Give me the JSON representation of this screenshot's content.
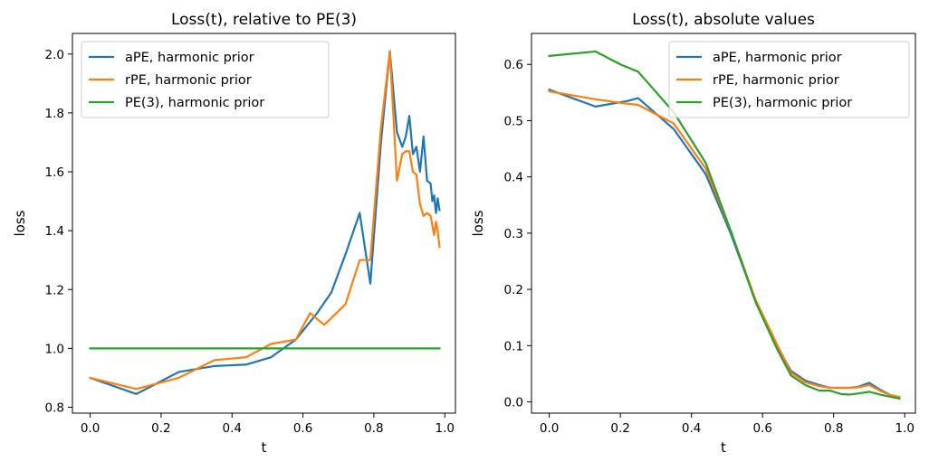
{
  "chart_data": [
    {
      "type": "line",
      "title": "Loss(t), relative to PE(3)",
      "xlabel": "t",
      "ylabel": "loss",
      "xlim": [
        -0.05,
        1.03
      ],
      "ylim": [
        0.78,
        2.07
      ],
      "xticks": [
        0.0,
        0.2,
        0.4,
        0.6,
        0.8,
        1.0
      ],
      "xtick_labels": [
        "0.0",
        "0.2",
        "0.4",
        "0.6",
        "0.8",
        "1.0"
      ],
      "yticks": [
        0.8,
        1.0,
        1.2,
        1.4,
        1.6,
        1.8,
        2.0
      ],
      "ytick_labels": [
        "0.8",
        "1.0",
        "1.2",
        "1.4",
        "1.6",
        "1.8",
        "2.0"
      ],
      "legend_position": "top-left",
      "series": [
        {
          "name": "aPE, harmonic prior",
          "color": "#1f77b4",
          "x": [
            0.0,
            0.13,
            0.25,
            0.35,
            0.44,
            0.51,
            0.58,
            0.64,
            0.68,
            0.72,
            0.76,
            0.79,
            0.82,
            0.845,
            0.865,
            0.88,
            0.89,
            0.9,
            0.91,
            0.92,
            0.93,
            0.94,
            0.95,
            0.96,
            0.965,
            0.97,
            0.975,
            0.98,
            0.985
          ],
          "y": [
            0.9,
            0.845,
            0.92,
            0.94,
            0.945,
            0.97,
            1.03,
            1.12,
            1.19,
            1.32,
            1.46,
            1.22,
            1.7,
            2.01,
            1.735,
            1.685,
            1.72,
            1.79,
            1.66,
            1.685,
            1.6,
            1.72,
            1.57,
            1.56,
            1.5,
            1.52,
            1.46,
            1.51,
            1.47
          ]
        },
        {
          "name": "rPE, harmonic prior",
          "color": "#ff7f0e",
          "x": [
            0.0,
            0.13,
            0.25,
            0.35,
            0.44,
            0.51,
            0.58,
            0.62,
            0.66,
            0.72,
            0.76,
            0.79,
            0.82,
            0.845,
            0.865,
            0.88,
            0.89,
            0.9,
            0.91,
            0.92,
            0.93,
            0.94,
            0.95,
            0.96,
            0.97,
            0.975,
            0.98,
            0.985
          ],
          "y": [
            0.9,
            0.862,
            0.9,
            0.96,
            0.97,
            1.015,
            1.03,
            1.12,
            1.08,
            1.15,
            1.3,
            1.3,
            1.75,
            2.01,
            1.57,
            1.66,
            1.67,
            1.67,
            1.6,
            1.59,
            1.49,
            1.45,
            1.46,
            1.45,
            1.385,
            1.43,
            1.4,
            1.345
          ]
        },
        {
          "name": "PE(3), harmonic prior",
          "color": "#2ca02c",
          "x": [
            0.0,
            0.985
          ],
          "y": [
            1.0,
            1.0
          ]
        }
      ]
    },
    {
      "type": "line",
      "title": "Loss(t), absolute values",
      "xlabel": "t",
      "ylabel": "loss",
      "xlim": [
        -0.05,
        1.03
      ],
      "ylim": [
        -0.02,
        0.655
      ],
      "xticks": [
        0.0,
        0.2,
        0.4,
        0.6,
        0.8,
        1.0
      ],
      "xtick_labels": [
        "0.0",
        "0.2",
        "0.4",
        "0.6",
        "0.8",
        "1.0"
      ],
      "yticks": [
        0.0,
        0.1,
        0.2,
        0.3,
        0.4,
        0.5,
        0.6
      ],
      "ytick_labels": [
        "0.0",
        "0.1",
        "0.2",
        "0.3",
        "0.4",
        "0.5",
        "0.6"
      ],
      "legend_position": "top-right",
      "series": [
        {
          "name": "aPE, harmonic prior",
          "color": "#1f77b4",
          "x": [
            0.0,
            0.13,
            0.22,
            0.25,
            0.35,
            0.44,
            0.51,
            0.58,
            0.64,
            0.68,
            0.72,
            0.76,
            0.79,
            0.82,
            0.845,
            0.87,
            0.9,
            0.93,
            0.96,
            0.985
          ],
          "y": [
            0.555,
            0.525,
            0.535,
            0.54,
            0.485,
            0.405,
            0.3,
            0.18,
            0.1,
            0.055,
            0.038,
            0.03,
            0.025,
            0.025,
            0.025,
            0.027,
            0.034,
            0.022,
            0.012,
            0.008
          ]
        },
        {
          "name": "rPE, harmonic prior",
          "color": "#ff7f0e",
          "x": [
            0.0,
            0.13,
            0.22,
            0.25,
            0.35,
            0.44,
            0.51,
            0.58,
            0.64,
            0.68,
            0.72,
            0.76,
            0.79,
            0.82,
            0.845,
            0.87,
            0.9,
            0.93,
            0.96,
            0.985
          ],
          "y": [
            0.552,
            0.538,
            0.53,
            0.528,
            0.495,
            0.415,
            0.305,
            0.182,
            0.103,
            0.052,
            0.035,
            0.028,
            0.025,
            0.025,
            0.025,
            0.026,
            0.03,
            0.02,
            0.012,
            0.009
          ]
        },
        {
          "name": "PE(3), harmonic prior",
          "color": "#2ca02c",
          "x": [
            0.0,
            0.13,
            0.2,
            0.25,
            0.35,
            0.44,
            0.51,
            0.58,
            0.64,
            0.68,
            0.72,
            0.76,
            0.79,
            0.82,
            0.845,
            0.87,
            0.9,
            0.93,
            0.96,
            0.985
          ],
          "y": [
            0.615,
            0.623,
            0.6,
            0.587,
            0.515,
            0.425,
            0.305,
            0.178,
            0.095,
            0.047,
            0.03,
            0.02,
            0.02,
            0.014,
            0.013,
            0.015,
            0.018,
            0.013,
            0.009,
            0.006
          ]
        }
      ]
    }
  ]
}
